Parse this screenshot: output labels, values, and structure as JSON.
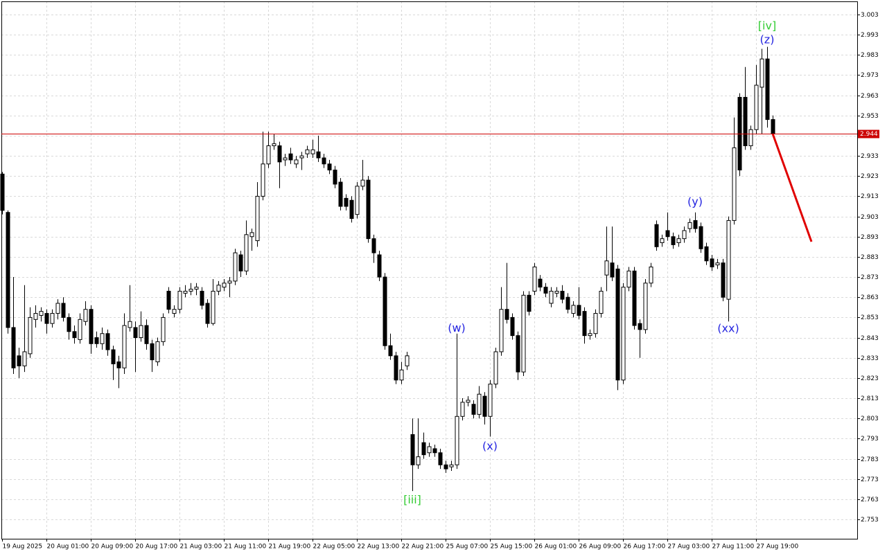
{
  "chart_data": {
    "type": "candlestick",
    "categories": [
      "19 Aug 2025",
      null,
      null,
      null,
      null,
      null,
      null,
      null,
      "20 Aug 01:00",
      null,
      null,
      null,
      null,
      null,
      null,
      null,
      "20 Aug 09:00",
      null,
      null,
      null,
      null,
      null,
      null,
      null,
      "20 Aug 17:00",
      null,
      null,
      null,
      null,
      null,
      null,
      null,
      "21 Aug 03:00",
      null,
      null,
      null,
      null,
      null,
      null,
      null,
      "21 Aug 11:00",
      null,
      null,
      null,
      null,
      null,
      null,
      null,
      "21 Aug 19:00",
      null,
      null,
      null,
      null,
      null,
      null,
      null,
      "22 Aug 05:00",
      null,
      null,
      null,
      null,
      null,
      null,
      null,
      "22 Aug 13:00",
      null,
      null,
      null,
      null,
      null,
      null,
      null,
      "22 Aug 21:00",
      null,
      null,
      null,
      null,
      null,
      null,
      null,
      "25 Aug 07:00",
      null,
      null,
      null,
      null,
      null,
      null,
      null,
      "25 Aug 15:00",
      null,
      null,
      null,
      null,
      null,
      null,
      null,
      "26 Aug 01:00",
      null,
      null,
      null,
      null,
      null,
      null,
      null,
      "26 Aug 09:00",
      null,
      null,
      null,
      null,
      null,
      null,
      null,
      "26 Aug 17:00",
      null,
      null,
      null,
      null,
      null,
      null,
      null,
      "27 Aug 03:00",
      null,
      null,
      null,
      null,
      null,
      null,
      null,
      "27 Aug 11:00",
      null,
      null,
      null,
      null,
      null,
      null,
      null,
      "27 Aug 19:00",
      null,
      null,
      null
    ],
    "open": [
      2.924,
      2.905,
      2.848,
      2.834,
      2.829,
      2.835,
      2.852,
      2.854,
      2.855,
      2.85,
      2.855,
      2.86,
      2.853,
      2.846,
      2.842,
      2.851,
      2.857,
      2.843,
      2.84,
      2.845,
      2.837,
      2.831,
      2.828,
      2.848,
      2.848,
      2.843,
      2.849,
      2.84,
      2.831,
      2.841,
      2.866,
      2.855,
      2.857,
      2.865,
      2.866,
      2.867,
      2.866,
      2.86,
      2.85,
      2.866,
      2.868,
      2.87,
      2.871,
      2.884,
      2.876,
      2.893,
      2.891,
      2.913,
      2.929,
      2.938,
      2.938,
      2.931,
      2.934,
      2.929,
      2.932,
      2.934,
      2.934,
      2.935,
      2.932,
      2.929,
      2.926,
      2.92,
      2.912,
      2.911,
      2.904,
      2.918,
      2.921,
      2.892,
      2.884,
      2.873,
      2.839,
      2.834,
      2.822,
      2.829,
      2.795,
      2.78,
      2.791,
      2.786,
      2.788,
      2.786,
      2.78,
      2.779,
      2.78,
      2.804,
      2.811,
      2.81,
      2.805,
      2.814,
      2.804,
      2.82,
      2.836,
      2.857,
      2.853,
      2.844,
      2.826,
      2.864,
      2.866,
      2.872,
      2.868,
      2.86,
      2.865,
      2.866,
      2.863,
      2.855,
      2.859,
      2.856,
      2.844,
      2.845,
      2.855,
      2.874,
      2.88,
      2.877,
      2.822,
      2.868,
      2.876,
      2.85,
      2.847,
      2.87,
      2.899,
      2.89,
      2.896,
      2.893,
      2.89,
      2.892,
      2.897,
      2.901,
      2.898,
      2.888,
      2.882,
      2.879,
      2.88,
      2.862,
      2.901,
      2.962,
      2.962,
      2.938,
      2.946,
      2.967,
      2.981,
      2.951
    ],
    "high": [
      2.925,
      2.906,
      2.873,
      2.838,
      2.869,
      2.858,
      2.859,
      2.858,
      2.857,
      2.857,
      2.862,
      2.863,
      2.855,
      2.849,
      2.855,
      2.861,
      2.859,
      2.846,
      2.848,
      2.847,
      2.839,
      2.834,
      2.855,
      2.869,
      2.851,
      2.856,
      2.852,
      2.842,
      2.843,
      2.855,
      2.868,
      2.859,
      2.868,
      2.869,
      2.87,
      2.87,
      2.868,
      2.862,
      2.872,
      2.871,
      2.872,
      2.873,
      2.887,
      2.886,
      2.901,
      2.897,
      2.92,
      2.945,
      2.945,
      2.944,
      2.94,
      2.934,
      2.937,
      2.933,
      2.935,
      2.938,
      2.941,
      2.943,
      2.934,
      2.931,
      2.928,
      2.922,
      2.914,
      2.913,
      2.92,
      2.931,
      2.923,
      2.894,
      2.886,
      2.875,
      2.845,
      2.836,
      2.831,
      2.836,
      2.803,
      2.803,
      2.796,
      2.791,
      2.79,
      2.788,
      2.782,
      2.782,
      2.845,
      2.813,
      2.814,
      2.812,
      2.819,
      2.816,
      2.822,
      2.838,
      2.868,
      2.88,
      2.855,
      2.846,
      2.866,
      2.866,
      2.88,
      2.874,
      2.87,
      2.868,
      2.868,
      2.869,
      2.865,
      2.861,
      2.868,
      2.858,
      2.847,
      2.857,
      2.868,
      2.898,
      2.898,
      2.879,
      2.87,
      2.878,
      2.878,
      2.852,
      2.872,
      2.88,
      2.901,
      2.894,
      2.905,
      2.895,
      2.894,
      2.898,
      2.902,
      2.905,
      2.9,
      2.89,
      2.884,
      2.882,
      2.882,
      2.903,
      2.952,
      2.964,
      2.977,
      2.948,
      2.978,
      2.986,
      2.987,
      2.953
    ],
    "low": [
      2.904,
      2.845,
      2.825,
      2.823,
      2.826,
      2.833,
      2.848,
      2.851,
      2.845,
      2.848,
      2.852,
      2.851,
      2.842,
      2.84,
      2.84,
      2.849,
      2.835,
      2.838,
      2.837,
      2.834,
      2.822,
      2.818,
      2.825,
      2.846,
      2.826,
      2.841,
      2.837,
      2.826,
      2.829,
      2.839,
      2.855,
      2.853,
      2.855,
      2.863,
      2.864,
      2.864,
      2.857,
      2.848,
      2.849,
      2.864,
      2.866,
      2.863,
      2.869,
      2.873,
      2.874,
      2.886,
      2.888,
      2.911,
      2.927,
      2.936,
      2.917,
      2.928,
      2.929,
      2.927,
      2.926,
      2.932,
      2.932,
      2.93,
      2.927,
      2.924,
      2.917,
      2.906,
      2.906,
      2.9,
      2.902,
      2.916,
      2.89,
      2.88,
      2.871,
      2.837,
      2.832,
      2.82,
      2.82,
      2.827,
      2.767,
      2.778,
      2.783,
      2.784,
      2.784,
      2.778,
      2.776,
      2.777,
      2.778,
      2.802,
      2.809,
      2.803,
      2.803,
      2.8,
      2.794,
      2.818,
      2.834,
      2.85,
      2.842,
      2.822,
      2.824,
      2.854,
      2.864,
      2.866,
      2.863,
      2.858,
      2.863,
      2.86,
      2.855,
      2.853,
      2.852,
      2.84,
      2.842,
      2.843,
      2.853,
      2.866,
      2.871,
      2.817,
      2.82,
      2.866,
      2.847,
      2.833,
      2.845,
      2.868,
      2.886,
      2.888,
      2.891,
      2.887,
      2.888,
      2.89,
      2.895,
      2.895,
      2.885,
      2.879,
      2.876,
      2.877,
      2.861,
      2.851,
      2.899,
      2.923,
      2.936,
      2.936,
      2.944,
      2.944,
      2.947,
      2.943
    ],
    "close": [
      2.906,
      2.848,
      2.828,
      2.829,
      2.836,
      2.853,
      2.855,
      2.856,
      2.85,
      2.855,
      2.86,
      2.853,
      2.846,
      2.843,
      2.852,
      2.857,
      2.84,
      2.84,
      2.845,
      2.837,
      2.83,
      2.828,
      2.849,
      2.851,
      2.843,
      2.849,
      2.84,
      2.832,
      2.841,
      2.853,
      2.857,
      2.857,
      2.866,
      2.866,
      2.867,
      2.868,
      2.859,
      2.85,
      2.866,
      2.869,
      2.87,
      2.871,
      2.885,
      2.876,
      2.894,
      2.895,
      2.913,
      2.929,
      2.938,
      2.939,
      2.93,
      2.932,
      2.931,
      2.931,
      2.933,
      2.936,
      2.936,
      2.932,
      2.929,
      2.926,
      2.919,
      2.908,
      2.908,
      2.902,
      2.918,
      2.921,
      2.892,
      2.885,
      2.873,
      2.839,
      2.834,
      2.822,
      2.827,
      2.834,
      2.78,
      2.784,
      2.785,
      2.789,
      2.786,
      2.78,
      2.778,
      2.78,
      2.804,
      2.811,
      2.812,
      2.805,
      2.815,
      2.804,
      2.82,
      2.836,
      2.857,
      2.852,
      2.844,
      2.826,
      2.864,
      2.856,
      2.878,
      2.868,
      2.865,
      2.866,
      2.866,
      2.862,
      2.857,
      2.859,
      2.854,
      2.844,
      2.845,
      2.855,
      2.866,
      2.881,
      2.873,
      2.822,
      2.868,
      2.876,
      2.849,
      2.847,
      2.87,
      2.878,
      2.888,
      2.892,
      2.893,
      2.889,
      2.892,
      2.896,
      2.9,
      2.897,
      2.887,
      2.881,
      2.878,
      2.88,
      2.863,
      2.901,
      2.937,
      2.926,
      2.938,
      2.946,
      2.968,
      2.981,
      2.951,
      2.944
    ],
    "up_color": "#ffffff",
    "down_color": "#000000",
    "ylim": [
      2.7434,
      3.0095
    ],
    "yticks": [
      2.753,
      2.763,
      2.773,
      2.783,
      2.793,
      2.803,
      2.813,
      2.823,
      2.833,
      2.843,
      2.853,
      2.863,
      2.873,
      2.883,
      2.893,
      2.903,
      2.913,
      2.923,
      2.933,
      2.943,
      2.953,
      2.963,
      2.973,
      2.983,
      2.993,
      3.003
    ],
    "grid": true,
    "price_line": {
      "value": 2.944,
      "color": "#cc0000"
    },
    "forecast": {
      "x": [
        139,
        146
      ],
      "values": [
        2.944,
        2.8905
      ],
      "color": "#e00000"
    },
    "annotations": [
      {
        "text": "[iii]",
        "color": "#33cc33",
        "x": 74,
        "y": 2.7625
      },
      {
        "text": "(w)",
        "color": "#2424e0",
        "x": 82,
        "y": 2.8475
      },
      {
        "text": "(x)",
        "color": "#2424e0",
        "x": 88,
        "y": 2.789
      },
      {
        "text": "(y)",
        "color": "#2424e0",
        "x": 125,
        "y": 2.91
      },
      {
        "text": "(xx)",
        "color": "#2424e0",
        "x": 131,
        "y": 2.8473
      },
      {
        "text": "(z)",
        "color": "#2424e0",
        "x": 138,
        "y": 2.9903
      },
      {
        "text": "[iv]",
        "color": "#33cc33",
        "x": 138,
        "y": 2.9972
      }
    ]
  }
}
